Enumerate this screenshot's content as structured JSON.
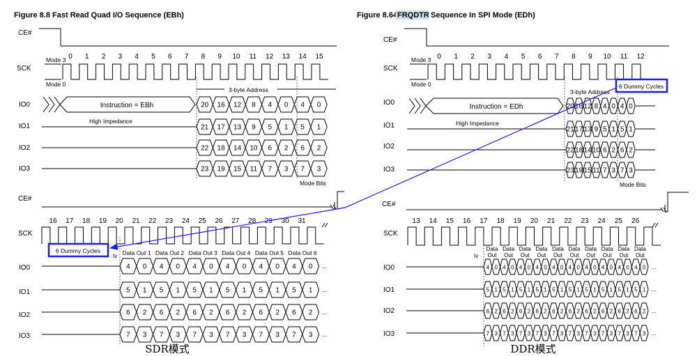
{
  "left": {
    "title": "Figure 8.8 Fast Read Quad I/O Sequence (EBh)",
    "mode3": "Mode 3",
    "mode0": "Mode 0",
    "ce": "CE#",
    "sck": "SCK",
    "io": [
      "IO0",
      "IO1",
      "IO2",
      "IO3"
    ],
    "clock_top": [
      "0",
      "1",
      "2",
      "3",
      "4",
      "5",
      "6",
      "7",
      "8",
      "9",
      "10",
      "11",
      "12",
      "13",
      "14",
      "15"
    ],
    "clock_bottom": [
      "16",
      "17",
      "18",
      "19",
      "20",
      "21",
      "22",
      "23",
      "24",
      "25",
      "26",
      "27",
      "28",
      "29",
      "30",
      "31"
    ],
    "instruction": "Instruction = EBh",
    "high_impedance": "High Impedance",
    "address_label": "3-byte Address",
    "mode_bits": "Mode Bits",
    "addr_rows": [
      [
        "20",
        "16",
        "12",
        "8",
        "4",
        "0",
        "4",
        "0"
      ],
      [
        "21",
        "17",
        "13",
        "9",
        "5",
        "1",
        "5",
        "1"
      ],
      [
        "22",
        "18",
        "14",
        "10",
        "6",
        "2",
        "6",
        "2"
      ],
      [
        "23",
        "19",
        "15",
        "11",
        "7",
        "3",
        "7",
        "3"
      ]
    ],
    "dummy": "6 Dummy Cycles",
    "tv": "tv",
    "data_out": [
      "Data Out 1",
      "Data Out 2",
      "Data Out 3",
      "Data Out 4",
      "Data Out 5",
      "Data Out 6"
    ],
    "data_rows": [
      [
        "4",
        "0",
        "4",
        "0",
        "4",
        "0",
        "4",
        "0",
        "4",
        "0",
        "4",
        "0"
      ],
      [
        "5",
        "1",
        "5",
        "1",
        "5",
        "1",
        "5",
        "1",
        "5",
        "1",
        "5",
        "1"
      ],
      [
        "6",
        "2",
        "6",
        "2",
        "6",
        "2",
        "6",
        "2",
        "6",
        "2",
        "6",
        "2"
      ],
      [
        "7",
        "3",
        "7",
        "3",
        "7",
        "3",
        "7",
        "3",
        "7",
        "3",
        "7",
        "3"
      ]
    ],
    "caption": "SDR模式"
  },
  "right": {
    "title_prefix": "Figure 8.64",
    "title_highlight": "FRQDTR",
    "title_suffix": "Sequence In SPI Mode (EDh)",
    "mode3": "Mode 3",
    "mode0": "Mode 0",
    "ce": "CE#",
    "sck": "SCK",
    "io": [
      "IO0",
      "IO1",
      "IO2",
      "IO3"
    ],
    "clock_top": [
      "0",
      "1",
      "2",
      "3",
      "4",
      "5",
      "6",
      "7",
      "8",
      "9",
      "10",
      "11",
      "12"
    ],
    "clock_bottom": [
      "13",
      "14",
      "15",
      "16",
      "17",
      "18",
      "19",
      "20",
      "21",
      "22",
      "23",
      "24",
      "25",
      "26"
    ],
    "instruction": "Instruction = EDh",
    "high_impedance": "High Impedance",
    "address_label": "3-byte Address",
    "mode_bits": "Mode Bits",
    "addr_rows": [
      [
        "20",
        "16",
        "12",
        "8",
        "4",
        "0",
        "4",
        "0"
      ],
      [
        "21",
        "17",
        "13",
        "9",
        "5",
        "1",
        "5",
        "1"
      ],
      [
        "22",
        "18",
        "14",
        "10",
        "6",
        "2",
        "6",
        "2"
      ],
      [
        "23",
        "19",
        "15",
        "11",
        "7",
        "3",
        "7",
        "3"
      ]
    ],
    "dummy": "6 Dummy Cycles",
    "tv": "tv",
    "data_out_line1": "Data",
    "data_out_line2": "Out",
    "data_rows": [
      [
        "4",
        "0",
        "4",
        "0",
        "4",
        "0",
        "4",
        "0",
        "4",
        "0",
        "4",
        "0",
        "4",
        "0",
        "4",
        "0",
        "4",
        "0",
        "4",
        "0"
      ],
      [
        "5",
        "1",
        "5",
        "1",
        "5",
        "1",
        "5",
        "1",
        "5",
        "1",
        "5",
        "1",
        "5",
        "1",
        "5",
        "1",
        "5",
        "1",
        "5",
        "1"
      ],
      [
        "6",
        "2",
        "6",
        "2",
        "6",
        "2",
        "6",
        "2",
        "6",
        "2",
        "6",
        "2",
        "6",
        "2",
        "6",
        "2",
        "6",
        "2",
        "6",
        "2"
      ],
      [
        "7",
        "3",
        "7",
        "3",
        "7",
        "3",
        "7",
        "3",
        "7",
        "3",
        "7",
        "3",
        "7",
        "3",
        "7",
        "3",
        "7",
        "3",
        "7",
        "3"
      ]
    ],
    "caption": "DDR模式"
  },
  "accent_blue": "#1a1aff",
  "ellipsis": "..."
}
